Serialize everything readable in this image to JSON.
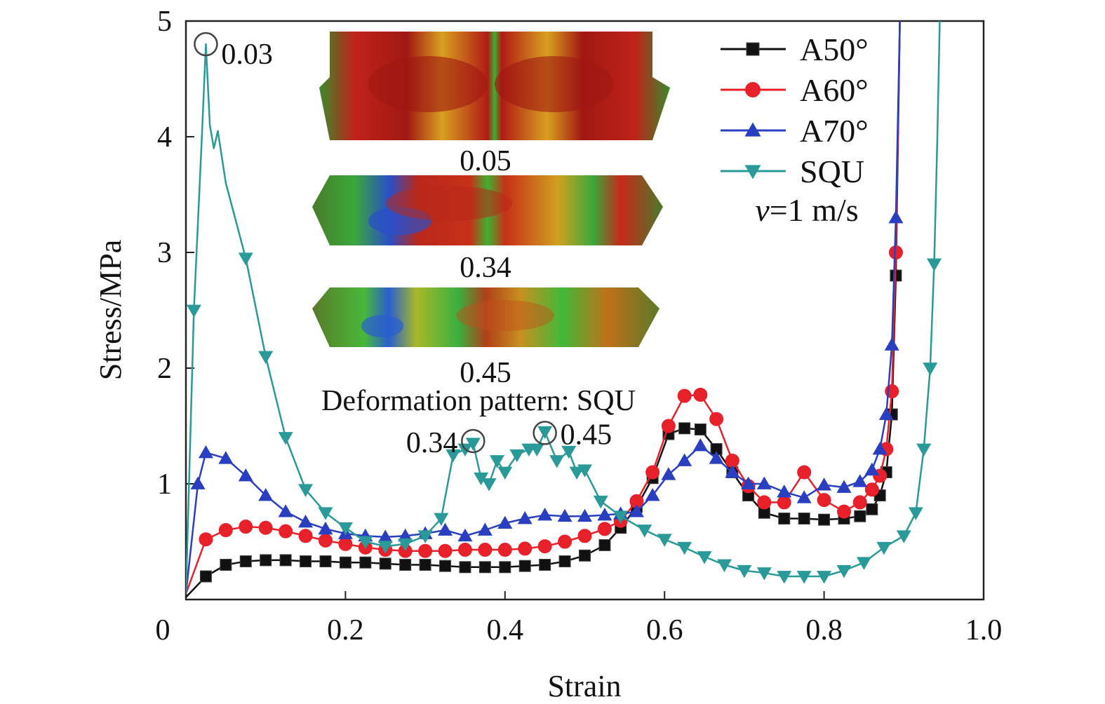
{
  "chart_data": {
    "type": "line",
    "title": "",
    "xlabel": "Strain",
    "ylabel": "Stress/MPa",
    "xlim": [
      0,
      1.0
    ],
    "ylim": [
      0,
      5
    ],
    "x_ticks": [
      "0",
      "0.2",
      "0.4",
      "0.6",
      "0.8",
      "1.0"
    ],
    "y_ticks": [
      "5",
      "4",
      "3",
      "2",
      "1"
    ],
    "grid": false,
    "legend_position": "top-right",
    "legend_note": "v=1 m/s",
    "series": [
      {
        "name": "A50°",
        "color": "#111111",
        "marker": "square",
        "x": [
          0.0,
          0.025,
          0.05,
          0.075,
          0.1,
          0.125,
          0.15,
          0.175,
          0.2,
          0.225,
          0.25,
          0.275,
          0.3,
          0.325,
          0.35,
          0.375,
          0.4,
          0.425,
          0.45,
          0.475,
          0.5,
          0.525,
          0.545,
          0.565,
          0.585,
          0.605,
          0.625,
          0.645,
          0.665,
          0.685,
          0.705,
          0.725,
          0.75,
          0.775,
          0.8,
          0.825,
          0.845,
          0.86,
          0.87,
          0.878,
          0.885,
          0.89,
          0.895
        ],
        "y": [
          0.02,
          0.2,
          0.3,
          0.33,
          0.34,
          0.34,
          0.33,
          0.33,
          0.32,
          0.32,
          0.31,
          0.3,
          0.3,
          0.29,
          0.28,
          0.28,
          0.28,
          0.29,
          0.3,
          0.33,
          0.38,
          0.47,
          0.62,
          0.8,
          1.05,
          1.43,
          1.48,
          1.47,
          1.3,
          1.1,
          0.9,
          0.75,
          0.7,
          0.7,
          0.69,
          0.7,
          0.72,
          0.78,
          0.9,
          1.1,
          1.6,
          2.8,
          5.0
        ]
      },
      {
        "name": "A60°",
        "color": "#e8202a",
        "marker": "circle",
        "x": [
          0.0,
          0.025,
          0.05,
          0.075,
          0.1,
          0.125,
          0.15,
          0.175,
          0.2,
          0.225,
          0.25,
          0.275,
          0.3,
          0.325,
          0.35,
          0.375,
          0.4,
          0.425,
          0.45,
          0.475,
          0.5,
          0.525,
          0.545,
          0.565,
          0.585,
          0.605,
          0.625,
          0.645,
          0.665,
          0.685,
          0.705,
          0.725,
          0.75,
          0.775,
          0.8,
          0.825,
          0.845,
          0.86,
          0.87,
          0.878,
          0.885,
          0.89,
          0.895
        ],
        "y": [
          0.05,
          0.52,
          0.6,
          0.63,
          0.62,
          0.59,
          0.55,
          0.51,
          0.48,
          0.45,
          0.43,
          0.42,
          0.42,
          0.42,
          0.43,
          0.43,
          0.43,
          0.44,
          0.46,
          0.5,
          0.55,
          0.61,
          0.68,
          0.85,
          1.1,
          1.5,
          1.76,
          1.77,
          1.56,
          1.2,
          0.98,
          0.84,
          0.84,
          1.1,
          0.86,
          0.76,
          0.84,
          0.95,
          1.07,
          1.3,
          1.8,
          3.0,
          5.0
        ]
      },
      {
        "name": "A70°",
        "color": "#2a3fc0",
        "marker": "triangle-up",
        "x": [
          0.0,
          0.015,
          0.025,
          0.05,
          0.075,
          0.1,
          0.125,
          0.15,
          0.175,
          0.2,
          0.225,
          0.25,
          0.275,
          0.3,
          0.325,
          0.35,
          0.375,
          0.4,
          0.425,
          0.45,
          0.475,
          0.5,
          0.525,
          0.545,
          0.565,
          0.585,
          0.605,
          0.625,
          0.645,
          0.665,
          0.685,
          0.705,
          0.725,
          0.75,
          0.775,
          0.8,
          0.825,
          0.845,
          0.86,
          0.87,
          0.878,
          0.885,
          0.89,
          0.895
        ],
        "y": [
          0.05,
          1.0,
          1.27,
          1.22,
          1.07,
          0.9,
          0.76,
          0.67,
          0.61,
          0.57,
          0.55,
          0.54,
          0.55,
          0.57,
          0.6,
          0.55,
          0.6,
          0.66,
          0.7,
          0.73,
          0.72,
          0.72,
          0.73,
          0.74,
          0.76,
          0.9,
          1.08,
          1.2,
          1.33,
          1.22,
          1.1,
          1.0,
          1.0,
          0.93,
          0.88,
          0.99,
          0.97,
          1.02,
          1.12,
          1.3,
          1.6,
          2.2,
          3.3,
          5.0
        ]
      },
      {
        "name": "SQU",
        "color": "#2a9a98",
        "marker": "triangle-down",
        "x": [
          0.0,
          0.01,
          0.02,
          0.025,
          0.03,
          0.035,
          0.04,
          0.05,
          0.075,
          0.1,
          0.125,
          0.15,
          0.175,
          0.2,
          0.225,
          0.25,
          0.275,
          0.3,
          0.32,
          0.335,
          0.35,
          0.36,
          0.37,
          0.38,
          0.39,
          0.4,
          0.415,
          0.43,
          0.44,
          0.45,
          0.465,
          0.48,
          0.49,
          0.5,
          0.52,
          0.545,
          0.575,
          0.6,
          0.625,
          0.65,
          0.675,
          0.7,
          0.725,
          0.75,
          0.775,
          0.8,
          0.825,
          0.85,
          0.875,
          0.9,
          0.915,
          0.925,
          0.933,
          0.938,
          0.942,
          0.945
        ],
        "y": [
          0.05,
          2.5,
          4.0,
          4.8,
          4.1,
          3.9,
          4.05,
          3.6,
          2.95,
          2.1,
          1.4,
          0.95,
          0.75,
          0.62,
          0.5,
          0.46,
          0.48,
          0.55,
          0.7,
          1.25,
          1.3,
          1.35,
          1.05,
          1.0,
          1.2,
          1.1,
          1.25,
          1.3,
          1.3,
          1.45,
          1.2,
          1.28,
          1.1,
          1.12,
          0.85,
          0.72,
          0.6,
          0.52,
          0.45,
          0.37,
          0.3,
          0.25,
          0.23,
          0.2,
          0.2,
          0.2,
          0.25,
          0.32,
          0.45,
          0.55,
          0.75,
          1.3,
          2.0,
          2.9,
          4.0,
          5.0
        ]
      }
    ],
    "annotations": [
      {
        "label": "0.03",
        "x": 0.025,
        "y": 4.8
      },
      {
        "label": "0.34",
        "x": 0.36,
        "y": 1.37
      },
      {
        "label": "0.45",
        "x": 0.45,
        "y": 1.44
      }
    ],
    "inset": {
      "caption": "Deformation pattern: SQU",
      "panels": [
        "0.05",
        "0.34",
        "0.45"
      ]
    }
  }
}
